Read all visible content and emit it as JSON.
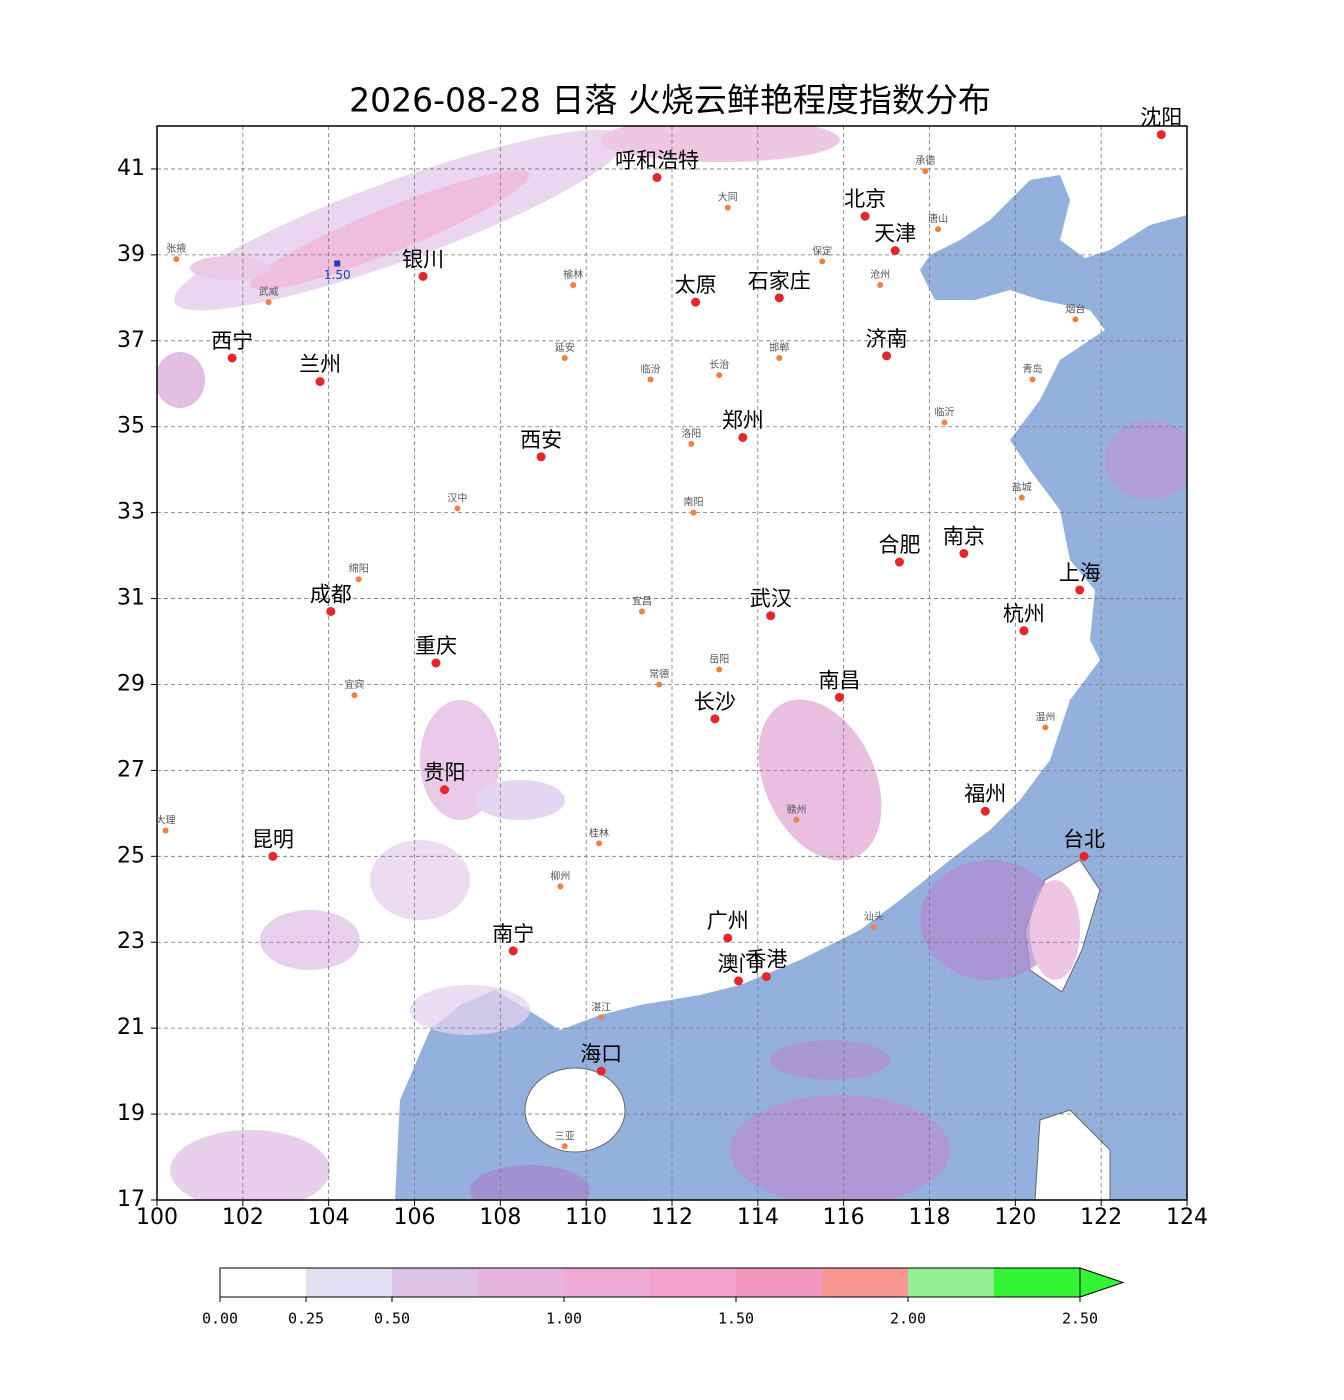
{
  "chart_data": {
    "type": "map",
    "title": "2026-08-28 日落 火烧云鲜艳程度指数分布",
    "xlim": [
      100,
      124
    ],
    "ylim": [
      17,
      42
    ],
    "xticks": [
      100,
      102,
      104,
      106,
      108,
      110,
      112,
      114,
      116,
      118,
      120,
      122,
      124
    ],
    "yticks": [
      17,
      19,
      21,
      23,
      25,
      27,
      29,
      31,
      33,
      35,
      37,
      39,
      41
    ],
    "grid": true,
    "marker": {
      "label": "1.50",
      "lon": 104.2,
      "lat": 38.8,
      "color": "#1a3cc8"
    },
    "cities": [
      {
        "name": "沈阳",
        "lon": 123.4,
        "lat": 41.8
      },
      {
        "name": "呼和浩特",
        "lon": 111.65,
        "lat": 40.8
      },
      {
        "name": "北京",
        "lon": 116.5,
        "lat": 39.9
      },
      {
        "name": "天津",
        "lon": 117.2,
        "lat": 39.1
      },
      {
        "name": "银川",
        "lon": 106.2,
        "lat": 38.5
      },
      {
        "name": "太原",
        "lon": 112.55,
        "lat": 37.9
      },
      {
        "name": "石家庄",
        "lon": 114.5,
        "lat": 38.0
      },
      {
        "name": "西宁",
        "lon": 101.75,
        "lat": 36.6
      },
      {
        "name": "兰州",
        "lon": 103.8,
        "lat": 36.05
      },
      {
        "name": "济南",
        "lon": 117.0,
        "lat": 36.65
      },
      {
        "name": "郑州",
        "lon": 113.65,
        "lat": 34.75
      },
      {
        "name": "西安",
        "lon": 108.95,
        "lat": 34.3
      },
      {
        "name": "南京",
        "lon": 118.8,
        "lat": 32.05
      },
      {
        "name": "合肥",
        "lon": 117.3,
        "lat": 31.85
      },
      {
        "name": "上海",
        "lon": 121.5,
        "lat": 31.2
      },
      {
        "name": "成都",
        "lon": 104.05,
        "lat": 30.7
      },
      {
        "name": "武汉",
        "lon": 114.3,
        "lat": 30.6
      },
      {
        "name": "杭州",
        "lon": 120.2,
        "lat": 30.25
      },
      {
        "name": "重庆",
        "lon": 106.5,
        "lat": 29.5
      },
      {
        "name": "南昌",
        "lon": 115.9,
        "lat": 28.7
      },
      {
        "name": "长沙",
        "lon": 113.0,
        "lat": 28.2
      },
      {
        "name": "贵阳",
        "lon": 106.7,
        "lat": 26.55
      },
      {
        "name": "福州",
        "lon": 119.3,
        "lat": 26.05
      },
      {
        "name": "昆明",
        "lon": 102.7,
        "lat": 25.0
      },
      {
        "name": "台北",
        "lon": 121.6,
        "lat": 25.0
      },
      {
        "name": "南宁",
        "lon": 108.3,
        "lat": 22.8
      },
      {
        "name": "广州",
        "lon": 113.3,
        "lat": 23.1
      },
      {
        "name": "香港",
        "lon": 114.2,
        "lat": 22.2
      },
      {
        "name": "澳门",
        "lon": 113.55,
        "lat": 22.1
      },
      {
        "name": "海口",
        "lon": 110.35,
        "lat": 20.0
      }
    ],
    "towns": [
      {
        "name": "张掖",
        "lon": 100.45,
        "lat": 38.9
      },
      {
        "name": "武威",
        "lon": 102.6,
        "lat": 37.9
      },
      {
        "name": "大同",
        "lon": 113.3,
        "lat": 40.1
      },
      {
        "name": "承德",
        "lon": 117.9,
        "lat": 40.95
      },
      {
        "name": "唐山",
        "lon": 118.2,
        "lat": 39.6
      },
      {
        "name": "保定",
        "lon": 115.5,
        "lat": 38.85
      },
      {
        "name": "沧州",
        "lon": 116.85,
        "lat": 38.3
      },
      {
        "name": "榆林",
        "lon": 109.7,
        "lat": 38.3
      },
      {
        "name": "延安",
        "lon": 109.5,
        "lat": 36.6
      },
      {
        "name": "临汾",
        "lon": 111.5,
        "lat": 36.1
      },
      {
        "name": "长治",
        "lon": 113.1,
        "lat": 36.2
      },
      {
        "name": "邯郸",
        "lon": 114.5,
        "lat": 36.6
      },
      {
        "name": "烟台",
        "lon": 121.4,
        "lat": 37.5
      },
      {
        "name": "青岛",
        "lon": 120.4,
        "lat": 36.1
      },
      {
        "name": "临沂",
        "lon": 118.35,
        "lat": 35.1
      },
      {
        "name": "洛阳",
        "lon": 112.45,
        "lat": 34.6
      },
      {
        "name": "汉中",
        "lon": 107.0,
        "lat": 33.1
      },
      {
        "name": "南阳",
        "lon": 112.5,
        "lat": 33.0
      },
      {
        "name": "盐城",
        "lon": 120.15,
        "lat": 33.35
      },
      {
        "name": "宜昌",
        "lon": 111.3,
        "lat": 30.7
      },
      {
        "name": "绵阳",
        "lon": 104.7,
        "lat": 31.45
      },
      {
        "name": "宜宾",
        "lon": 104.6,
        "lat": 28.75
      },
      {
        "name": "岳阳",
        "lon": 113.1,
        "lat": 29.35
      },
      {
        "name": "常德",
        "lon": 111.7,
        "lat": 29.0
      },
      {
        "name": "温州",
        "lon": 120.7,
        "lat": 28.0
      },
      {
        "name": "赣州",
        "lon": 114.9,
        "lat": 25.85
      },
      {
        "name": "桂林",
        "lon": 110.3,
        "lat": 25.3
      },
      {
        "name": "柳州",
        "lon": 109.4,
        "lat": 24.3
      },
      {
        "name": "汕头",
        "lon": 116.7,
        "lat": 23.35
      },
      {
        "name": "湛江",
        "lon": 110.35,
        "lat": 21.25
      },
      {
        "name": "三亚",
        "lon": 109.5,
        "lat": 18.25
      },
      {
        "name": "大理",
        "lon": 100.2,
        "lat": 25.6
      }
    ],
    "colorbar": {
      "levels": [
        0,
        0.25,
        0.5,
        0.75,
        1.0,
        1.25,
        1.5,
        1.75,
        2.0,
        2.25,
        2.5
      ],
      "colors": [
        "#ffffff",
        "#e2dff2",
        "#dcc3e6",
        "#e6b4dc",
        "#eeaad6",
        "#f2a0cc",
        "#f296be",
        "#f99590",
        "#94ee94",
        "#34f534"
      ],
      "ticks": [
        {
          "value": 0,
          "label": "0.00"
        },
        {
          "value": 0.25,
          "label": "0.25"
        },
        {
          "value": 0.5,
          "label": "0.50"
        },
        {
          "value": 1.0,
          "label": "1.00"
        },
        {
          "value": 1.5,
          "label": "1.50"
        },
        {
          "value": 2.0,
          "label": "2.00"
        },
        {
          "value": 2.5,
          "label": "2.50"
        }
      ]
    }
  }
}
